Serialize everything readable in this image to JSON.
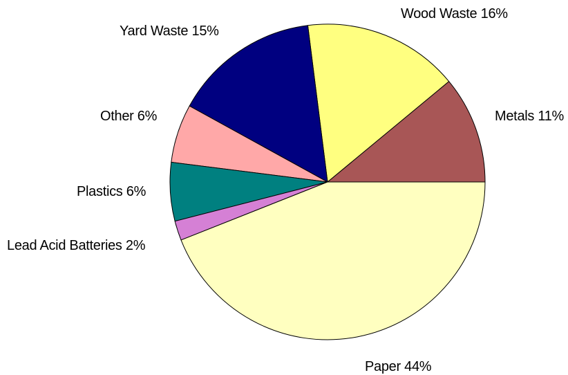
{
  "chart_data": {
    "type": "pie",
    "title": "",
    "slices": [
      {
        "label": "Metals",
        "value": 11,
        "text": "Metals 11%",
        "color": "#a85656"
      },
      {
        "label": "Wood Waste",
        "value": 16,
        "text": "Wood Waste  16%",
        "color": "#ffff80"
      },
      {
        "label": "Yard Waste",
        "value": 15,
        "text": "Yard Waste  15%",
        "color": "#000080"
      },
      {
        "label": "Other",
        "value": 6,
        "text": "Other  6%",
        "color": "#ffa8a8"
      },
      {
        "label": "Plastics",
        "value": 6,
        "text": "Plastics 6%",
        "color": "#008080"
      },
      {
        "label": "Lead Acid Batteries",
        "value": 2,
        "text": "Lead Acid Batteries  2%",
        "color": "#d580d5"
      },
      {
        "label": "Paper",
        "value": 44,
        "text": "Paper  44%",
        "color": "#ffffc0"
      }
    ]
  }
}
